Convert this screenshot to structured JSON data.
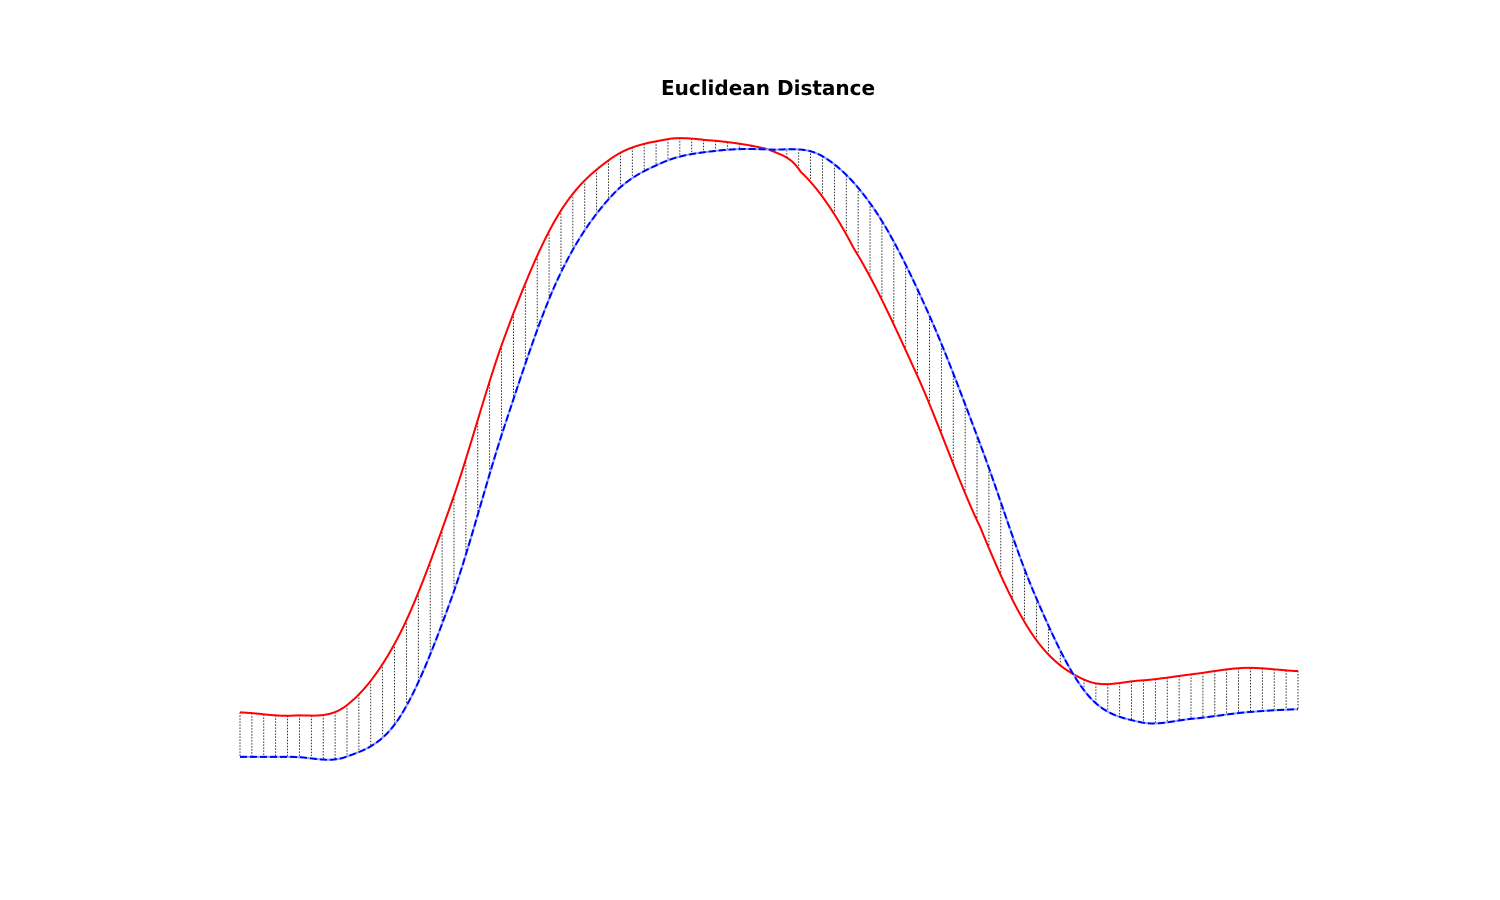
{
  "chart_data": {
    "type": "line",
    "title": "Euclidean Distance",
    "xlabel": "",
    "ylabel": "",
    "axes_visible": false,
    "grid": false,
    "xlim": [
      0,
      1
    ],
    "ylim": [
      -0.1,
      1.1
    ],
    "point_count": 90,
    "series": [
      {
        "color": "#ff0000",
        "line_style": "solid",
        "points": [
          [
            0.0,
            0.1
          ],
          [
            0.05,
            0.095
          ],
          [
            0.1,
            0.11
          ],
          [
            0.15,
            0.22
          ],
          [
            0.2,
            0.43
          ],
          [
            0.25,
            0.69
          ],
          [
            0.3,
            0.88
          ],
          [
            0.35,
            0.97
          ],
          [
            0.4,
            1.0
          ],
          [
            0.44,
            1.0
          ],
          [
            0.5,
            0.985
          ],
          [
            0.53,
            0.95
          ],
          [
            0.58,
            0.83
          ],
          [
            0.64,
            0.63
          ],
          [
            0.7,
            0.39
          ],
          [
            0.75,
            0.22
          ],
          [
            0.8,
            0.15
          ],
          [
            0.85,
            0.15
          ],
          [
            0.9,
            0.16
          ],
          [
            0.95,
            0.17
          ],
          [
            1.0,
            0.165
          ]
        ]
      },
      {
        "color": "#0000ff",
        "line_style": "dashed",
        "points": [
          [
            0.0,
            0.03
          ],
          [
            0.05,
            0.03
          ],
          [
            0.1,
            0.03
          ],
          [
            0.15,
            0.09
          ],
          [
            0.2,
            0.28
          ],
          [
            0.25,
            0.55
          ],
          [
            0.3,
            0.78
          ],
          [
            0.35,
            0.91
          ],
          [
            0.4,
            0.965
          ],
          [
            0.45,
            0.983
          ],
          [
            0.5,
            0.985
          ],
          [
            0.55,
            0.975
          ],
          [
            0.6,
            0.89
          ],
          [
            0.65,
            0.73
          ],
          [
            0.7,
            0.52
          ],
          [
            0.75,
            0.29
          ],
          [
            0.8,
            0.13
          ],
          [
            0.85,
            0.085
          ],
          [
            0.9,
            0.09
          ],
          [
            0.95,
            0.1
          ],
          [
            1.0,
            0.105
          ]
        ]
      }
    ],
    "connector_color": "#000000",
    "connector_style": "dotted"
  }
}
